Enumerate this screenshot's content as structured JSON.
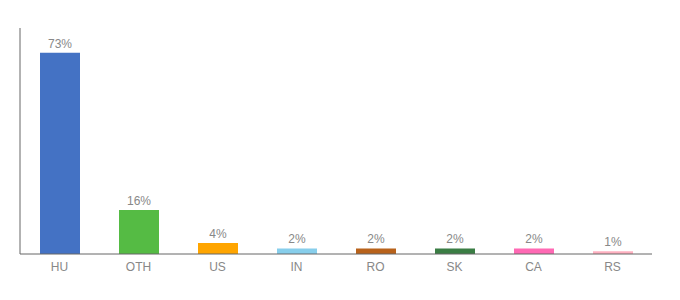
{
  "chart_data": {
    "type": "bar",
    "categories": [
      "HU",
      "OTH",
      "US",
      "IN",
      "RO",
      "SK",
      "CA",
      "RS"
    ],
    "values": [
      73,
      16,
      4,
      2,
      2,
      2,
      2,
      1
    ],
    "value_labels": [
      "73%",
      "16%",
      "4%",
      "2%",
      "2%",
      "2%",
      "2%",
      "1%"
    ],
    "colors": [
      "#4472C4",
      "#55BB44",
      "#FFA500",
      "#87CEEB",
      "#B8621B",
      "#3A7D44",
      "#FF69B4",
      "#FFB0C0"
    ],
    "ylim": [
      0,
      82
    ],
    "tick_labels": "x",
    "data_labels": true,
    "grid": false
  }
}
